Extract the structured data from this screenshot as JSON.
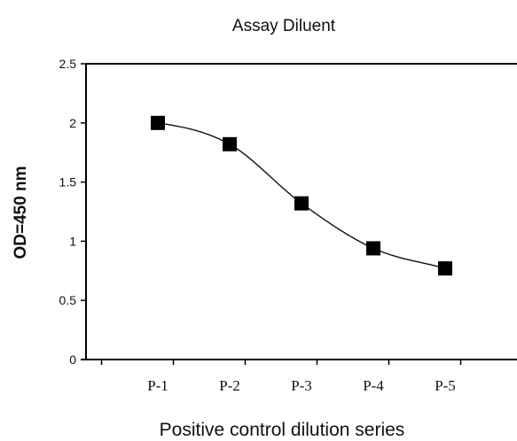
{
  "chart_data": {
    "type": "line",
    "title": "Assay Diluent",
    "xlabel": "Positive control dilution series",
    "ylabel": "OD=450 nm",
    "categories": [
      "P-1",
      "P-2",
      "P-3",
      "P-4",
      "P-5"
    ],
    "values": [
      2.0,
      1.82,
      1.32,
      0.94,
      0.77
    ],
    "ylim": [
      0,
      2.5
    ],
    "yticks": [
      "0",
      "0.5",
      "1",
      "1.5",
      "2",
      "2.5"
    ],
    "grid": false,
    "marker": "square",
    "smooth": true,
    "colors": {
      "line": "#111111",
      "marker": "#000000",
      "axis": "#000000"
    }
  }
}
